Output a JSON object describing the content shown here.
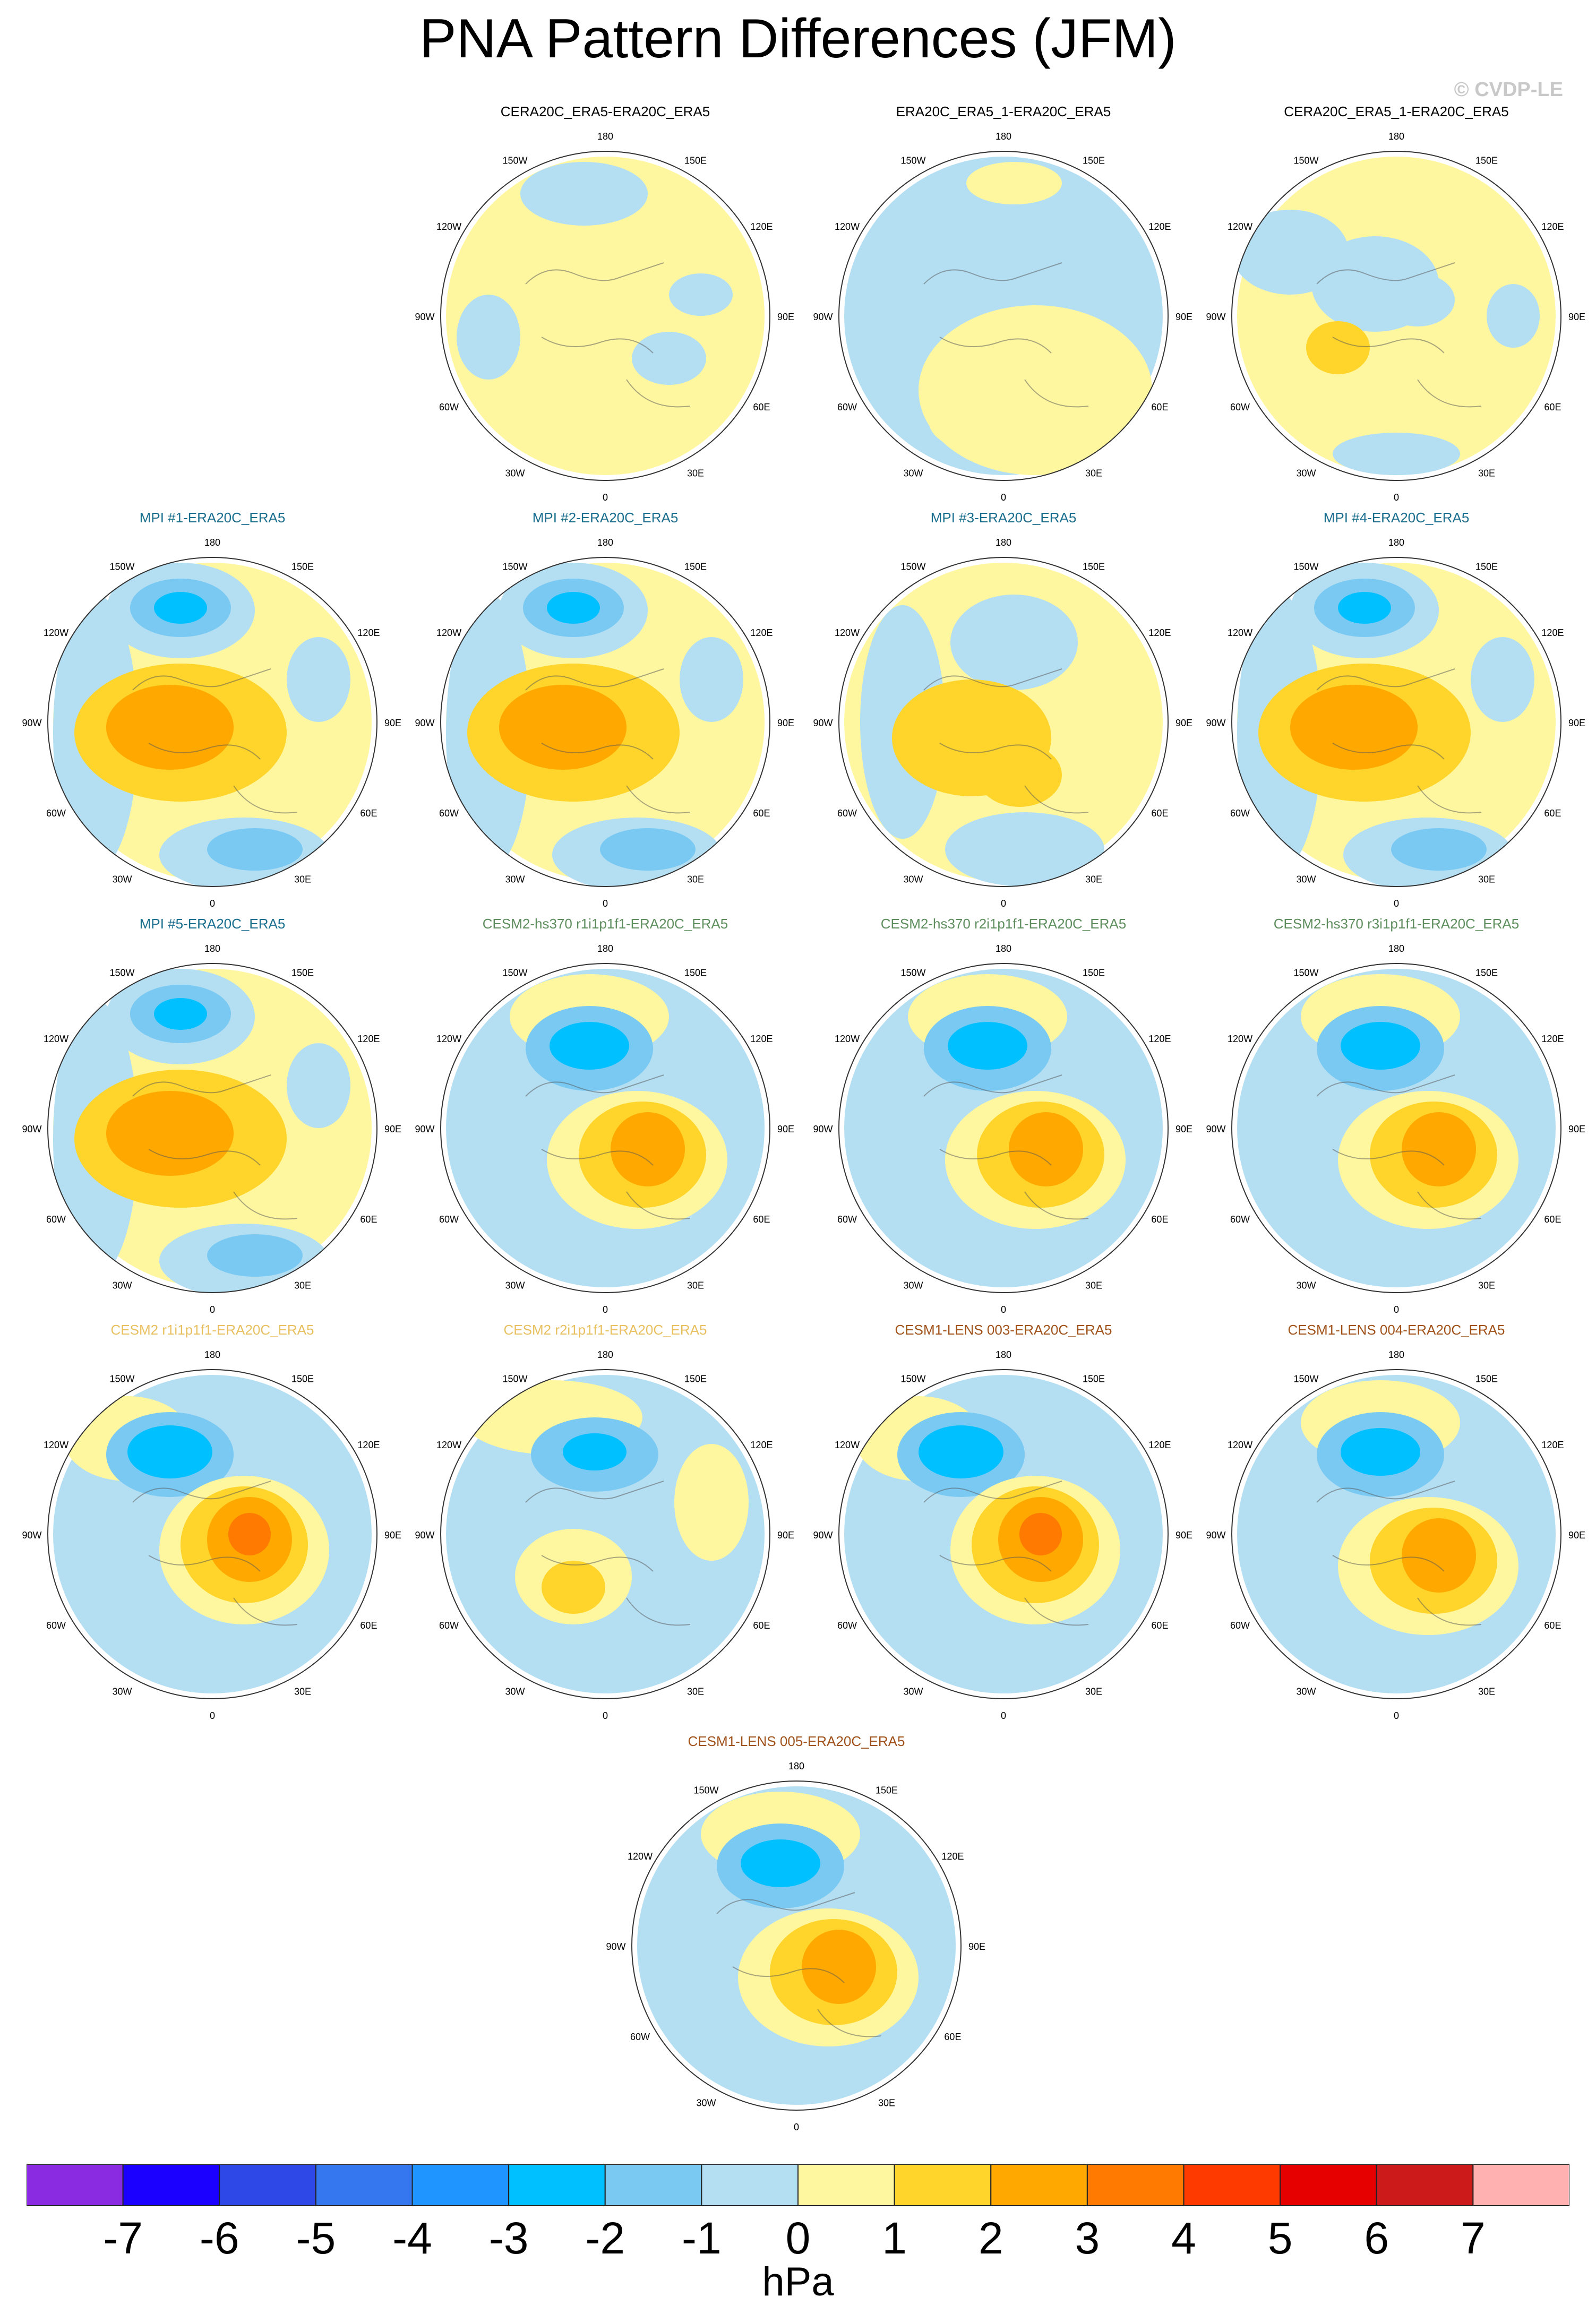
{
  "title": "PNA Pattern Differences (JFM)",
  "watermark": "© CVDP-LE",
  "units": "hPa",
  "colorbar": {
    "colors": [
      "#8a2be2",
      "#1c00ff",
      "#2d48e6",
      "#3577ee",
      "#1f96ff",
      "#00c0ff",
      "#7ac9f2",
      "#b4dff2",
      "#fff7a0",
      "#ffd52b",
      "#ffa800",
      "#ff7a00",
      "#ff3a00",
      "#e60000",
      "#cc1a1a",
      "#ffb0b0"
    ],
    "labels": [
      "-7",
      "-6",
      "-5",
      "-4",
      "-3",
      "-2",
      "-1",
      "0",
      "1",
      "2",
      "3",
      "4",
      "5",
      "6",
      "7"
    ]
  },
  "lon_labels": [
    "180",
    "150E",
    "120E",
    "90E",
    "60E",
    "30E",
    "0",
    "30W",
    "60W",
    "90W",
    "120W",
    "150W"
  ],
  "panels": [
    {
      "title": "CERA20C_ERA5-ERA20C_ERA5",
      "color": "#000000",
      "pattern": "weak1"
    },
    {
      "title": "ERA20C_ERA5_1-ERA20C_ERA5",
      "color": "#000000",
      "pattern": "weak2"
    },
    {
      "title": "CERA20C_ERA5_1-ERA20C_ERA5",
      "color": "#000000",
      "pattern": "weak3"
    },
    {
      "title": "MPI #1-ERA20C_ERA5",
      "color": "#1a6e8e",
      "pattern": "mpi"
    },
    {
      "title": "MPI #2-ERA20C_ERA5",
      "color": "#1a6e8e",
      "pattern": "mpi"
    },
    {
      "title": "MPI #3-ERA20C_ERA5",
      "color": "#1a6e8e",
      "pattern": "mpi_weak"
    },
    {
      "title": "MPI #4-ERA20C_ERA5",
      "color": "#1a6e8e",
      "pattern": "mpi"
    },
    {
      "title": "MPI #5-ERA20C_ERA5",
      "color": "#1a6e8e",
      "pattern": "mpi"
    },
    {
      "title": "CESM2-hs370 r1i1p1f1-ERA20C_ERA5",
      "color": "#5e8e5e",
      "pattern": "cesm"
    },
    {
      "title": "CESM2-hs370 r2i1p1f1-ERA20C_ERA5",
      "color": "#5e8e5e",
      "pattern": "cesm"
    },
    {
      "title": "CESM2-hs370 r3i1p1f1-ERA20C_ERA5",
      "color": "#5e8e5e",
      "pattern": "cesm"
    },
    {
      "title": "CESM2 r1i1p1f1-ERA20C_ERA5",
      "color": "#e8c060",
      "pattern": "cesm_strong"
    },
    {
      "title": "CESM2 r2i1p1f1-ERA20C_ERA5",
      "color": "#e8c060",
      "pattern": "cesm_weak"
    },
    {
      "title": "CESM1-LENS 003-ERA20C_ERA5",
      "color": "#a0521a",
      "pattern": "cesm_strong"
    },
    {
      "title": "CESM1-LENS 004-ERA20C_ERA5",
      "color": "#a0521a",
      "pattern": "cesm"
    },
    {
      "title": "CESM1-LENS 005-ERA20C_ERA5",
      "color": "#a0521a",
      "pattern": "cesm"
    }
  ]
}
